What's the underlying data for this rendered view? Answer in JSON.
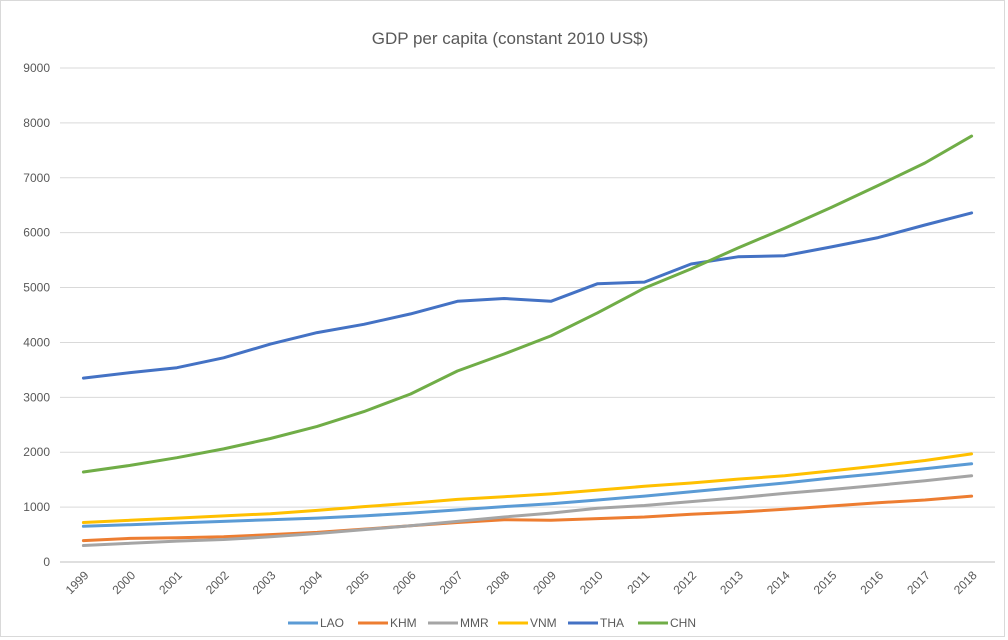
{
  "chart_data": {
    "type": "line",
    "title": "GDP per capita (constant 2010 US$)",
    "xlabel": "",
    "ylabel": "",
    "ylim": [
      0,
      9000
    ],
    "yticks": [
      0,
      1000,
      2000,
      3000,
      4000,
      5000,
      6000,
      7000,
      8000,
      9000
    ],
    "grid": true,
    "legend_position": "bottom",
    "categories": [
      "1999",
      "2000",
      "2001",
      "2002",
      "2003",
      "2004",
      "2005",
      "2006",
      "2007",
      "2008",
      "2009",
      "2010",
      "2011",
      "2012",
      "2013",
      "2014",
      "2015",
      "2016",
      "2017",
      "2018"
    ],
    "series": [
      {
        "name": "LAO",
        "color": "#5b9bd5",
        "values": [
          650,
          680,
          710,
          740,
          770,
          800,
          840,
          890,
          950,
          1010,
          1060,
          1130,
          1200,
          1280,
          1360,
          1440,
          1530,
          1610,
          1700,
          1790
        ]
      },
      {
        "name": "KHM",
        "color": "#ed7d31",
        "values": [
          390,
          430,
          440,
          460,
          500,
          540,
          600,
          660,
          720,
          770,
          760,
          790,
          820,
          870,
          910,
          960,
          1020,
          1080,
          1130,
          1200
        ]
      },
      {
        "name": "MMR",
        "color": "#a5a5a5",
        "values": [
          300,
          340,
          380,
          410,
          460,
          520,
          590,
          660,
          740,
          820,
          890,
          980,
          1030,
          1100,
          1170,
          1250,
          1320,
          1400,
          1480,
          1570
        ]
      },
      {
        "name": "VNM",
        "color": "#ffc000",
        "values": [
          720,
          760,
          800,
          840,
          880,
          940,
          1010,
          1070,
          1140,
          1190,
          1240,
          1310,
          1380,
          1440,
          1510,
          1570,
          1660,
          1750,
          1850,
          1970
        ]
      },
      {
        "name": "THA",
        "color": "#4472c4",
        "values": [
          3350,
          3450,
          3540,
          3720,
          3970,
          4180,
          4330,
          4520,
          4750,
          4800,
          4750,
          5070,
          5100,
          5430,
          5560,
          5580,
          5740,
          5910,
          6140,
          6360
        ]
      },
      {
        "name": "CHN",
        "color": "#70ad47",
        "values": [
          1640,
          1760,
          1900,
          2060,
          2250,
          2470,
          2740,
          3060,
          3480,
          3790,
          4120,
          4540,
          4990,
          5340,
          5720,
          6080,
          6460,
          6860,
          7270,
          7760
        ]
      }
    ]
  }
}
